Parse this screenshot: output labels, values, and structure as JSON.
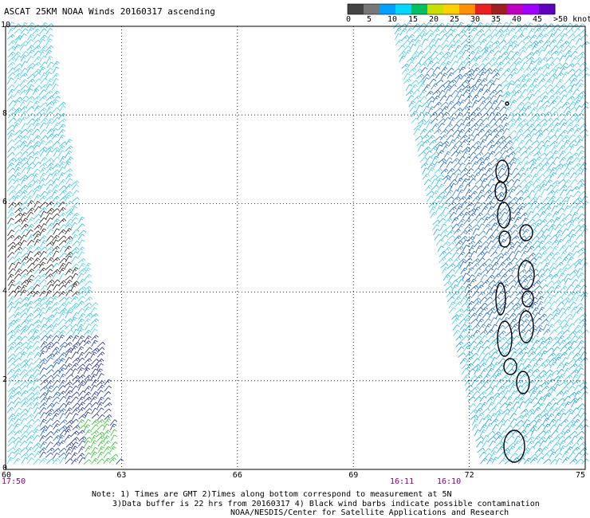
{
  "title": "ASCAT 25KM NOAA Winds 20160317 ascending",
  "legend": {
    "labels": [
      "0",
      "5",
      "10",
      "15",
      "20",
      "25",
      "30",
      "35",
      "40",
      "45",
      ">50 knots"
    ],
    "colors": [
      "#444444",
      "#777777",
      "#00a0ff",
      "#00d8ff",
      "#00c060",
      "#c8e000",
      "#ffd000",
      "#ff9000",
      "#e82020",
      "#a02020",
      "#c000c0",
      "#a000ff",
      "#6000c0"
    ]
  },
  "map": {
    "x_ticks": [
      "60",
      "63",
      "66",
      "69",
      "72",
      "75"
    ],
    "y_ticks": [
      "0",
      "2",
      "4",
      "6",
      "8",
      "10"
    ],
    "x_range": [
      60,
      75
    ],
    "y_range": [
      0,
      10
    ]
  },
  "times": {
    "left": "17:50",
    "middle": "16:11",
    "right": "16:10"
  },
  "notes": {
    "line1": "Note: 1) Times are GMT 2)Times along bottom correspond to measurement at 5N",
    "line2": "3)Data buffer is 22 hrs from 20160317 4) Black wind barbs indicate possible contamination",
    "line3": "NOAA/NESDIS/Center for Satellite Applications and Research"
  }
}
